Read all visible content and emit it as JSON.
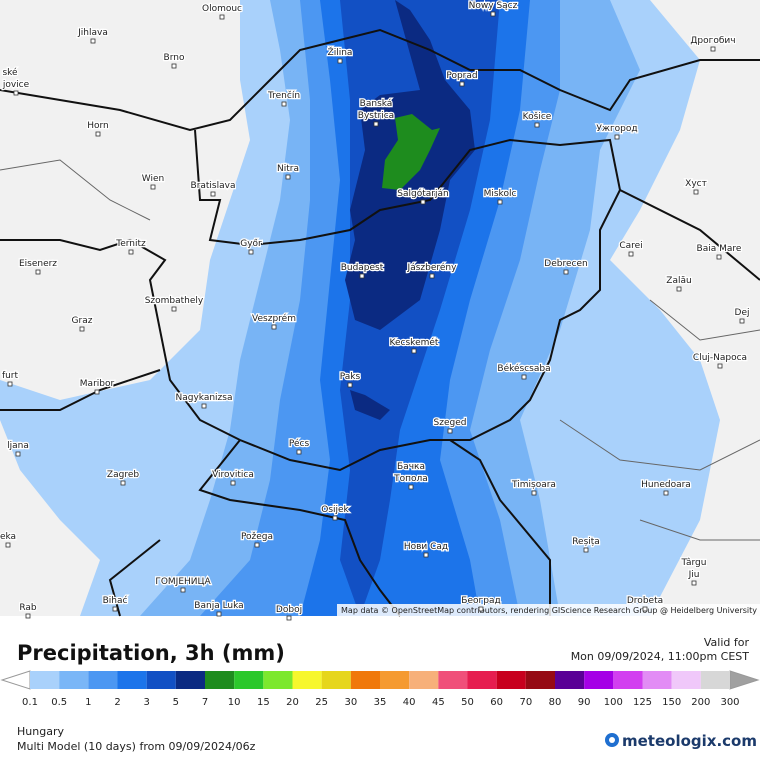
{
  "header": {
    "title": "Precipitation, 3h (mm)",
    "valid_label": "Valid for",
    "valid_time": "Mon 09/09/2024, 11:00pm CEST"
  },
  "map": {
    "attribution": "Map data © OpenStreetMap contributors, rendering GIScience Research Group @ Heidelberg University",
    "cities": [
      "Olomouc",
      "Nowy Sącz",
      "Jihlava",
      "Brno",
      "Žilina",
      "Poprad",
      "Дрогобич",
      "ské",
      "jovice",
      "Trenčín",
      "Banská",
      "Bystrica",
      "Košice",
      "Ужгород",
      "Horn",
      "Nitra",
      "Wien",
      "Bratislava",
      "Salgótarján",
      "Miskolc",
      "Хуст",
      "Ternitz",
      "Győr",
      "Carei",
      "Baia Mare",
      "Eisenerz",
      "Budapest",
      "Jászberény",
      "Debrecen",
      "Szombathely",
      "Zalău",
      "Graz",
      "Veszprém",
      "Dej",
      "Kecskemét",
      "Cluj-Napoca",
      "furt",
      "Paks",
      "Békéscsaba",
      "Maribor",
      "Nagykanizsa",
      "Szeged",
      "ljana",
      "Pécs",
      "Zagreb",
      "Бачка",
      "Топола",
      "Virovitica",
      "Timișoara",
      "Hunedoara",
      "Osijek",
      "Reșița",
      "eka",
      "Požega",
      "Нови Сад",
      "Târgu",
      "Jiu",
      "ГОМЈЕНИЦА",
      "Bihać",
      "Banja Luka",
      "Doboj",
      "Београд",
      "Rab",
      "Drobeta"
    ]
  },
  "legend": {
    "ticks": [
      "0.1",
      "0.5",
      "1",
      "2",
      "3",
      "5",
      "7",
      "10",
      "15",
      "20",
      "25",
      "30",
      "35",
      "40",
      "45",
      "50",
      "60",
      "70",
      "80",
      "90",
      "100",
      "125",
      "150",
      "200",
      "300"
    ],
    "colors": [
      "#a9d1fb",
      "#7ab6f7",
      "#4c97f2",
      "#1c74ea",
      "#1250c4",
      "#0b2a82",
      "#1e8c1e",
      "#2bc82b",
      "#7ce82e",
      "#f7f72e",
      "#e6d61c",
      "#f0780a",
      "#f59a30",
      "#f7b07a",
      "#f0507a",
      "#e61e50",
      "#c8001e",
      "#960a14",
      "#5a0096",
      "#a500e6",
      "#d23ff0",
      "#e28cf5",
      "#f0c8fa",
      "#d7d7d7"
    ]
  },
  "footer": {
    "region": "Hungary",
    "model": "Multi Model (10 days) from 09/09/2024/06z",
    "brand": "meteologix.com"
  }
}
